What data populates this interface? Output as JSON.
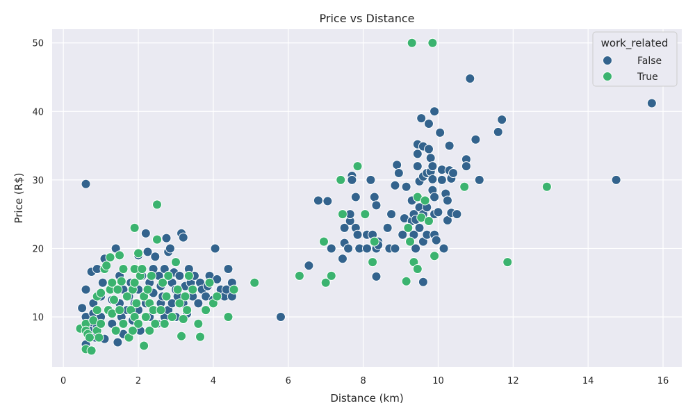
{
  "chart_data": {
    "type": "scatter",
    "title": "Price vs Distance",
    "xlabel": "Distance (km)",
    "ylabel": "Price (R$)",
    "xlim": [
      -0.3,
      16.5
    ],
    "ylim": [
      2.7,
      52.0
    ],
    "xticks": [
      0,
      2,
      4,
      6,
      8,
      10,
      12,
      14,
      16
    ],
    "yticks": [
      10,
      20,
      30,
      40,
      50
    ],
    "grid": true,
    "style": "seaborn-darkgrid",
    "legend": {
      "title": "work_related",
      "position": "top-right"
    },
    "series": [
      {
        "name": "False",
        "color": "#33638d",
        "points": [
          [
            0.6,
            29.4
          ],
          [
            0.5,
            11.3
          ],
          [
            0.6,
            14
          ],
          [
            0.6,
            10
          ],
          [
            0.7,
            9
          ],
          [
            0.6,
            6
          ],
          [
            0.7,
            8
          ],
          [
            0.75,
            16.6
          ],
          [
            0.8,
            12
          ],
          [
            0.8,
            10.5
          ],
          [
            0.85,
            7
          ],
          [
            0.9,
            17
          ],
          [
            0.9,
            8.5
          ],
          [
            1.0,
            13
          ],
          [
            1.0,
            10
          ],
          [
            1.05,
            15
          ],
          [
            1.1,
            18.5
          ],
          [
            1.1,
            6.8
          ],
          [
            1.2,
            11
          ],
          [
            1.3,
            9
          ],
          [
            1.3,
            12.5
          ],
          [
            1.4,
            20
          ],
          [
            1.4,
            8
          ],
          [
            1.45,
            6.3
          ],
          [
            1.5,
            12
          ],
          [
            1.5,
            16
          ],
          [
            1.55,
            10
          ],
          [
            1.6,
            14
          ],
          [
            1.6,
            7.5
          ],
          [
            1.7,
            11
          ],
          [
            1.75,
            13
          ],
          [
            1.8,
            15
          ],
          [
            1.85,
            9.5
          ],
          [
            1.9,
            12
          ],
          [
            2.0,
            19
          ],
          [
            2.0,
            14
          ],
          [
            2.0,
            11
          ],
          [
            2.05,
            8
          ],
          [
            2.1,
            16
          ],
          [
            2.2,
            22.2
          ],
          [
            2.2,
            12
          ],
          [
            2.25,
            19.5
          ],
          [
            2.3,
            10
          ],
          [
            2.3,
            15
          ],
          [
            2.4,
            17
          ],
          [
            2.4,
            13.5
          ],
          [
            2.45,
            18.8
          ],
          [
            2.5,
            9
          ],
          [
            2.55,
            16
          ],
          [
            2.6,
            12
          ],
          [
            2.6,
            14.5
          ],
          [
            2.65,
            13
          ],
          [
            2.7,
            17
          ],
          [
            2.7,
            10
          ],
          [
            2.75,
            21.5
          ],
          [
            2.8,
            11
          ],
          [
            2.8,
            19.5
          ],
          [
            2.85,
            20
          ],
          [
            2.9,
            15
          ],
          [
            2.9,
            12
          ],
          [
            2.95,
            16.5
          ],
          [
            3.0,
            10
          ],
          [
            3.0,
            14
          ],
          [
            3.05,
            13
          ],
          [
            3.1,
            16
          ],
          [
            3.15,
            22.2
          ],
          [
            3.2,
            21.6
          ],
          [
            3.2,
            12
          ],
          [
            3.25,
            14.5
          ],
          [
            3.3,
            10.5
          ],
          [
            3.35,
            17
          ],
          [
            3.4,
            15
          ],
          [
            3.45,
            13
          ],
          [
            3.5,
            16
          ],
          [
            3.6,
            12
          ],
          [
            3.65,
            15
          ],
          [
            3.7,
            14
          ],
          [
            3.8,
            13
          ],
          [
            3.85,
            14.5
          ],
          [
            3.9,
            16
          ],
          [
            4.0,
            12.5
          ],
          [
            4.05,
            20
          ],
          [
            4.1,
            15.5
          ],
          [
            4.2,
            14
          ],
          [
            4.3,
            13
          ],
          [
            4.35,
            14
          ],
          [
            4.4,
            17
          ],
          [
            4.5,
            13
          ],
          [
            4.5,
            15
          ],
          [
            5.8,
            10
          ],
          [
            6.55,
            17.5
          ],
          [
            6.8,
            27
          ],
          [
            7.05,
            26.9
          ],
          [
            7.15,
            20
          ],
          [
            7.45,
            18.5
          ],
          [
            7.5,
            20.8
          ],
          [
            7.5,
            23
          ],
          [
            7.6,
            20
          ],
          [
            7.65,
            24
          ],
          [
            7.65,
            25
          ],
          [
            7.7,
            30.6
          ],
          [
            7.7,
            30
          ],
          [
            7.8,
            27.5
          ],
          [
            7.8,
            23
          ],
          [
            7.85,
            22
          ],
          [
            7.9,
            20
          ],
          [
            8.1,
            20
          ],
          [
            8.1,
            22
          ],
          [
            8.2,
            30
          ],
          [
            8.25,
            22
          ],
          [
            8.3,
            27.5
          ],
          [
            8.35,
            26.3
          ],
          [
            8.35,
            20
          ],
          [
            8.35,
            15.9
          ],
          [
            8.4,
            21
          ],
          [
            8.4,
            20.5
          ],
          [
            8.65,
            23
          ],
          [
            8.7,
            20
          ],
          [
            8.75,
            25
          ],
          [
            8.85,
            29.2
          ],
          [
            8.85,
            20
          ],
          [
            8.9,
            32.2
          ],
          [
            8.95,
            31
          ],
          [
            9.05,
            22
          ],
          [
            9.1,
            24.4
          ],
          [
            9.15,
            29
          ],
          [
            9.3,
            27
          ],
          [
            9.3,
            24
          ],
          [
            9.35,
            25
          ],
          [
            9.35,
            22
          ],
          [
            9.4,
            20
          ],
          [
            9.4,
            24.2
          ],
          [
            9.45,
            33.8
          ],
          [
            9.45,
            35.2
          ],
          [
            9.45,
            32
          ],
          [
            9.5,
            29.8
          ],
          [
            9.5,
            26
          ],
          [
            9.5,
            23
          ],
          [
            9.55,
            39
          ],
          [
            9.6,
            30.5
          ],
          [
            9.6,
            34.9
          ],
          [
            9.6,
            25
          ],
          [
            9.6,
            21
          ],
          [
            9.6,
            15.1
          ],
          [
            9.7,
            31
          ],
          [
            9.7,
            26
          ],
          [
            9.7,
            22
          ],
          [
            9.75,
            38.2
          ],
          [
            9.75,
            34.5
          ],
          [
            9.8,
            33.2
          ],
          [
            9.8,
            31.2
          ],
          [
            9.85,
            32
          ],
          [
            9.85,
            30.1
          ],
          [
            9.85,
            28.5
          ],
          [
            9.9,
            40
          ],
          [
            9.9,
            27.5
          ],
          [
            9.9,
            25
          ],
          [
            9.9,
            22
          ],
          [
            9.95,
            21.2
          ],
          [
            10.0,
            25.3
          ],
          [
            10.05,
            36.9
          ],
          [
            10.1,
            31.5
          ],
          [
            10.1,
            30
          ],
          [
            10.15,
            20
          ],
          [
            10.2,
            28
          ],
          [
            10.25,
            27
          ],
          [
            10.25,
            24.1
          ],
          [
            10.3,
            35
          ],
          [
            10.3,
            31.4
          ],
          [
            10.35,
            30.2
          ],
          [
            10.35,
            25.2
          ],
          [
            10.4,
            31
          ],
          [
            10.5,
            25
          ],
          [
            10.75,
            33
          ],
          [
            10.75,
            32
          ],
          [
            10.85,
            44.8
          ],
          [
            11.0,
            35.9
          ],
          [
            11.1,
            30
          ],
          [
            11.6,
            37
          ],
          [
            11.7,
            38.8
          ],
          [
            14.75,
            30
          ],
          [
            15.7,
            41.2
          ]
        ]
      },
      {
        "name": "True",
        "color": "#3bb36f",
        "points": [
          [
            0.45,
            8.3
          ],
          [
            0.6,
            9
          ],
          [
            0.6,
            8
          ],
          [
            0.6,
            5.3
          ],
          [
            0.65,
            7.5
          ],
          [
            0.7,
            7
          ],
          [
            0.75,
            5.1
          ],
          [
            0.8,
            9.5
          ],
          [
            0.9,
            13
          ],
          [
            0.9,
            11
          ],
          [
            0.9,
            8
          ],
          [
            0.95,
            7
          ],
          [
            1.0,
            9
          ],
          [
            1.0,
            13.5
          ],
          [
            1.1,
            17
          ],
          [
            1.15,
            17.5
          ],
          [
            1.2,
            11
          ],
          [
            1.25,
            14
          ],
          [
            1.25,
            18.7
          ],
          [
            1.3,
            10.5
          ],
          [
            1.3,
            15
          ],
          [
            1.35,
            12.5
          ],
          [
            1.4,
            8
          ],
          [
            1.45,
            14
          ],
          [
            1.5,
            19
          ],
          [
            1.5,
            11
          ],
          [
            1.55,
            15.2
          ],
          [
            1.6,
            17
          ],
          [
            1.6,
            9
          ],
          [
            1.7,
            13
          ],
          [
            1.75,
            7
          ],
          [
            1.8,
            11
          ],
          [
            1.85,
            14
          ],
          [
            1.85,
            8
          ],
          [
            1.9,
            17
          ],
          [
            1.9,
            10
          ],
          [
            1.9,
            15
          ],
          [
            1.9,
            23
          ],
          [
            1.95,
            12
          ],
          [
            2.0,
            19.3
          ],
          [
            2.0,
            9
          ],
          [
            2.05,
            16
          ],
          [
            2.1,
            17
          ],
          [
            2.15,
            13
          ],
          [
            2.15,
            5.8
          ],
          [
            2.2,
            10
          ],
          [
            2.25,
            14
          ],
          [
            2.3,
            8
          ],
          [
            2.3,
            12
          ],
          [
            2.35,
            16
          ],
          [
            2.4,
            11
          ],
          [
            2.45,
            9
          ],
          [
            2.5,
            21.3
          ],
          [
            2.5,
            26.4
          ],
          [
            2.6,
            11
          ],
          [
            2.65,
            15
          ],
          [
            2.7,
            9
          ],
          [
            2.75,
            13
          ],
          [
            2.8,
            16
          ],
          [
            2.9,
            10
          ],
          [
            3.0,
            18
          ],
          [
            3.05,
            14
          ],
          [
            3.1,
            12
          ],
          [
            3.15,
            7.2
          ],
          [
            3.2,
            9.7
          ],
          [
            3.25,
            13
          ],
          [
            3.3,
            11
          ],
          [
            3.35,
            16
          ],
          [
            3.45,
            14
          ],
          [
            3.6,
            9
          ],
          [
            3.65,
            7.1
          ],
          [
            3.8,
            11
          ],
          [
            3.9,
            15
          ],
          [
            4.0,
            12
          ],
          [
            4.1,
            13
          ],
          [
            4.4,
            10
          ],
          [
            4.55,
            14
          ],
          [
            5.1,
            15
          ],
          [
            6.3,
            16
          ],
          [
            6.95,
            21
          ],
          [
            7.0,
            15
          ],
          [
            7.15,
            16
          ],
          [
            7.4,
            30
          ],
          [
            7.45,
            25
          ],
          [
            7.85,
            32
          ],
          [
            8.05,
            25
          ],
          [
            8.25,
            18
          ],
          [
            8.3,
            21
          ],
          [
            9.15,
            15.2
          ],
          [
            9.2,
            23
          ],
          [
            9.25,
            21
          ],
          [
            9.3,
            50
          ],
          [
            9.35,
            18
          ],
          [
            9.45,
            17
          ],
          [
            9.45,
            27.5
          ],
          [
            9.55,
            24.5
          ],
          [
            9.65,
            27
          ],
          [
            9.75,
            24
          ],
          [
            9.85,
            50
          ],
          [
            9.9,
            18.9
          ],
          [
            10.7,
            29
          ],
          [
            11.85,
            18
          ],
          [
            12.9,
            29
          ]
        ]
      }
    ]
  }
}
